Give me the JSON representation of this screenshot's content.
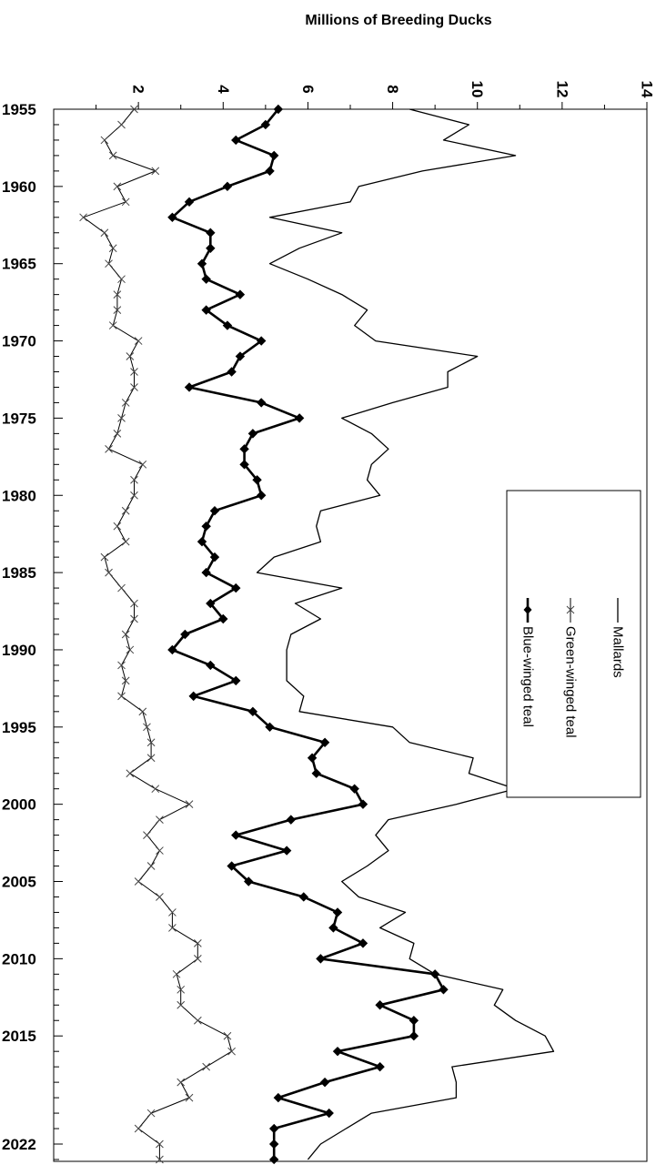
{
  "chart_data": {
    "type": "line",
    "title": "Millions of Breeding Ducks",
    "x_ticks": [
      1955,
      1960,
      1965,
      1970,
      1975,
      1980,
      1985,
      1990,
      1995,
      2000,
      2005,
      2010,
      2015,
      2022
    ],
    "xlim": [
      1955,
      2022
    ],
    "y_ticks": [
      2,
      4,
      6,
      8,
      10,
      12,
      14
    ],
    "ylim": [
      0,
      14
    ],
    "legend_position": "right",
    "x": [
      1955,
      1956,
      1957,
      1958,
      1959,
      1960,
      1961,
      1962,
      1963,
      1964,
      1965,
      1966,
      1967,
      1968,
      1969,
      1970,
      1971,
      1972,
      1973,
      1974,
      1975,
      1976,
      1977,
      1978,
      1979,
      1980,
      1981,
      1982,
      1983,
      1984,
      1985,
      1986,
      1987,
      1988,
      1989,
      1990,
      1991,
      1992,
      1993,
      1994,
      1995,
      1996,
      1997,
      1998,
      1999,
      2000,
      2001,
      2002,
      2003,
      2004,
      2005,
      2006,
      2007,
      2008,
      2009,
      2010,
      2011,
      2012,
      2013,
      2014,
      2015,
      2016,
      2017,
      2018,
      2019,
      2020,
      2021,
      2022,
      2023
    ],
    "series": [
      {
        "name": "Mallards",
        "marker": "none",
        "stroke_width": 1.3,
        "values": [
          8.4,
          9.8,
          9.2,
          10.9,
          8.7,
          7.2,
          7.0,
          5.1,
          6.8,
          5.8,
          5.1,
          6.0,
          6.8,
          7.4,
          7.1,
          7.6,
          10.0,
          9.3,
          9.3,
          8.0,
          6.8,
          7.5,
          7.9,
          7.5,
          7.4,
          7.7,
          6.3,
          6.2,
          6.3,
          5.2,
          4.8,
          6.8,
          5.7,
          6.3,
          5.6,
          5.5,
          5.5,
          5.5,
          5.9,
          5.8,
          8.0,
          8.4,
          9.9,
          9.8,
          10.9,
          9.5,
          7.9,
          7.6,
          7.9,
          7.4,
          6.8,
          7.2,
          8.3,
          7.7,
          8.5,
          8.4,
          9.0,
          10.6,
          10.4,
          10.9,
          11.6,
          11.8,
          9.4,
          9.5,
          9.5,
          7.5,
          6.9,
          6.3,
          6.0
        ]
      },
      {
        "name": "Green-winged teal",
        "marker": "x",
        "stroke_width": 1.0,
        "values": [
          1.9,
          1.6,
          1.2,
          1.4,
          2.4,
          1.5,
          1.7,
          0.7,
          1.2,
          1.4,
          1.3,
          1.6,
          1.5,
          1.5,
          1.4,
          2.0,
          1.8,
          1.9,
          1.9,
          1.7,
          1.6,
          1.5,
          1.3,
          2.1,
          1.9,
          1.9,
          1.7,
          1.5,
          1.7,
          1.2,
          1.3,
          1.6,
          1.9,
          1.9,
          1.7,
          1.8,
          1.6,
          1.7,
          1.6,
          2.1,
          2.2,
          2.3,
          2.3,
          1.8,
          2.4,
          3.2,
          2.5,
          2.2,
          2.5,
          2.3,
          2.0,
          2.5,
          2.8,
          2.8,
          3.4,
          3.4,
          2.9,
          3.0,
          3.0,
          3.4,
          4.1,
          4.2,
          3.6,
          3.0,
          3.2,
          2.3,
          2.0,
          2.5,
          2.5
        ]
      },
      {
        "name": "Blue-winged teal",
        "marker": "diamond",
        "stroke_width": 2.6,
        "values": [
          5.3,
          5.0,
          4.3,
          5.2,
          5.1,
          4.1,
          3.2,
          2.8,
          3.7,
          3.7,
          3.5,
          3.6,
          4.4,
          3.6,
          4.1,
          4.9,
          4.4,
          4.2,
          3.2,
          4.9,
          5.8,
          4.7,
          4.5,
          4.5,
          4.8,
          4.9,
          3.8,
          3.6,
          3.5,
          3.8,
          3.6,
          4.3,
          3.7,
          4.0,
          3.1,
          2.8,
          3.7,
          4.3,
          3.3,
          4.7,
          5.1,
          6.4,
          6.1,
          6.2,
          7.1,
          7.3,
          5.6,
          4.3,
          5.5,
          4.2,
          4.6,
          5.9,
          6.7,
          6.6,
          7.3,
          6.3,
          9.0,
          9.2,
          7.7,
          8.5,
          8.5,
          6.7,
          7.7,
          6.4,
          5.3,
          6.5,
          5.2,
          5.2,
          5.2
        ]
      }
    ]
  }
}
